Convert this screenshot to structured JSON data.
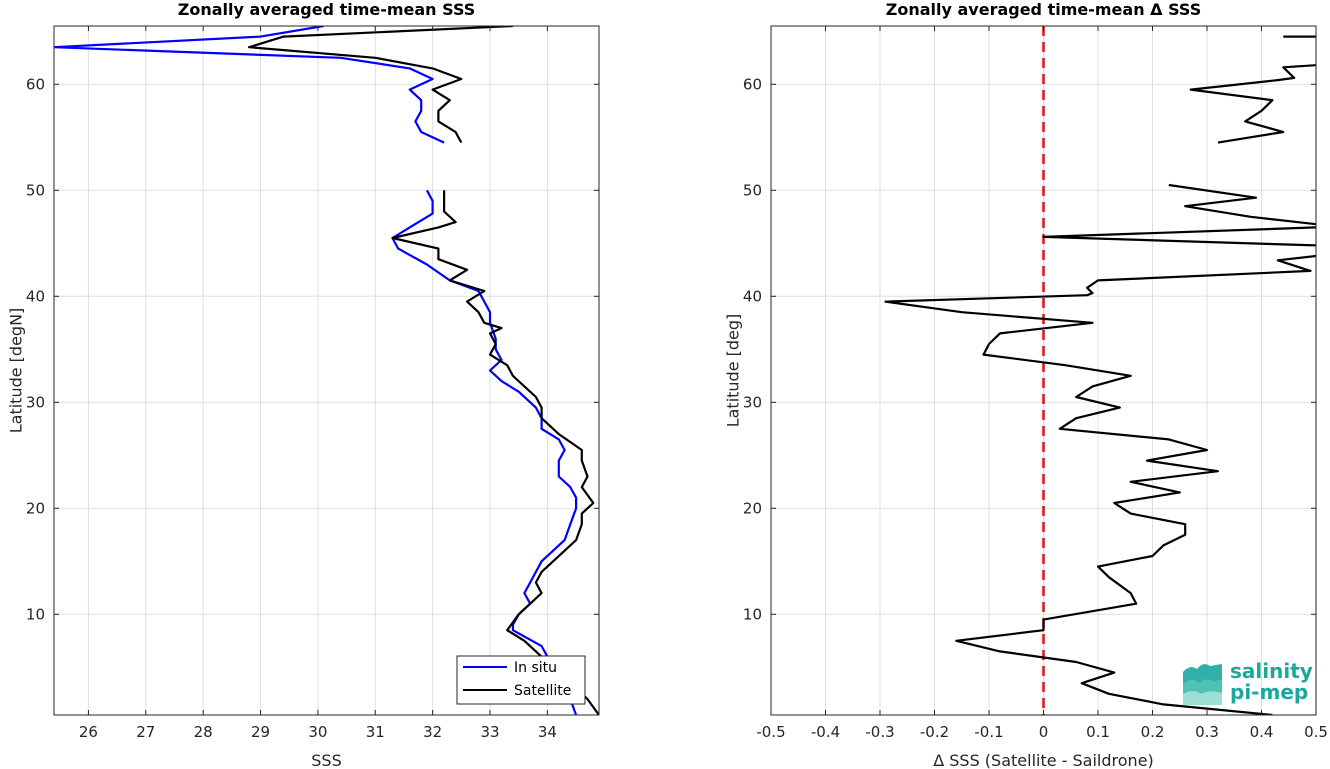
{
  "chart_data": [
    {
      "type": "line",
      "title": "Zonally averaged time-mean SSS",
      "xlabel": "SSS",
      "ylabel": "Latitude [degN]",
      "xlim": [
        25.4,
        34.9
      ],
      "ylim": [
        0.5,
        65.5
      ],
      "xticks": [
        26,
        27,
        28,
        29,
        30,
        31,
        32,
        33,
        34
      ],
      "yticks": [
        10,
        20,
        30,
        40,
        50,
        60
      ],
      "grid": true,
      "legend_position": "bottom-right",
      "series": [
        {
          "name": "In situ",
          "color": "#0000ff",
          "segments": [
            [
              [
                30.1,
                65.5
              ],
              [
                29.0,
                64.5
              ],
              [
                25.4,
                63.5
              ],
              [
                30.4,
                62.5
              ],
              [
                31.6,
                61.5
              ],
              [
                32.0,
                60.5
              ],
              [
                31.6,
                59.5
              ],
              [
                31.8,
                58.5
              ],
              [
                31.8,
                57.5
              ],
              [
                31.7,
                56.5
              ],
              [
                31.8,
                55.5
              ],
              [
                32.2,
                54.5
              ]
            ],
            [
              [
                31.9,
                50.0
              ],
              [
                32.0,
                49.0
              ],
              [
                32.0,
                47.8
              ],
              [
                31.6,
                46.5
              ],
              [
                31.3,
                45.5
              ],
              [
                31.4,
                44.5
              ],
              [
                31.9,
                43.0
              ],
              [
                32.3,
                41.5
              ],
              [
                32.8,
                40.5
              ],
              [
                32.9,
                39.5
              ],
              [
                33.0,
                38.5
              ],
              [
                33.0,
                37.5
              ],
              [
                33.1,
                36.0
              ],
              [
                33.1,
                35.0
              ],
              [
                33.2,
                34.0
              ],
              [
                33.0,
                33.0
              ],
              [
                33.2,
                32.0
              ],
              [
                33.5,
                31.0
              ],
              [
                33.8,
                29.5
              ],
              [
                33.9,
                28.5
              ],
              [
                33.9,
                27.5
              ],
              [
                34.2,
                26.5
              ],
              [
                34.3,
                25.5
              ],
              [
                34.2,
                24.5
              ],
              [
                34.2,
                23.0
              ],
              [
                34.4,
                22.0
              ],
              [
                34.5,
                21.0
              ],
              [
                34.5,
                20.0
              ],
              [
                34.4,
                18.5
              ],
              [
                34.3,
                17.0
              ],
              [
                34.1,
                16.0
              ],
              [
                33.9,
                15.0
              ],
              [
                33.8,
                14.0
              ],
              [
                33.7,
                13.0
              ],
              [
                33.6,
                12.0
              ],
              [
                33.7,
                11.0
              ],
              [
                33.5,
                10.0
              ],
              [
                33.4,
                9.0
              ],
              [
                33.4,
                8.5
              ],
              [
                33.9,
                7.0
              ],
              [
                34.0,
                6.0
              ],
              [
                34.1,
                5.0
              ],
              [
                34.2,
                4.0
              ],
              [
                34.3,
                3.0
              ],
              [
                34.4,
                2.0
              ],
              [
                34.5,
                0.5
              ]
            ]
          ]
        },
        {
          "name": "Satellite",
          "color": "#000000",
          "segments": [
            [
              [
                33.4,
                65.5
              ],
              [
                29.4,
                64.5
              ],
              [
                28.8,
                63.5
              ],
              [
                31.0,
                62.5
              ],
              [
                32.0,
                61.5
              ],
              [
                32.5,
                60.5
              ],
              [
                32.0,
                59.5
              ],
              [
                32.3,
                58.5
              ],
              [
                32.1,
                57.5
              ],
              [
                32.1,
                56.5
              ],
              [
                32.4,
                55.5
              ],
              [
                32.5,
                54.5
              ]
            ],
            [
              [
                32.2,
                50.0
              ],
              [
                32.2,
                49.0
              ],
              [
                32.2,
                48.0
              ],
              [
                32.4,
                47.0
              ],
              [
                32.1,
                46.5
              ],
              [
                31.3,
                45.5
              ],
              [
                32.1,
                44.5
              ],
              [
                32.1,
                43.5
              ],
              [
                32.6,
                42.5
              ],
              [
                32.3,
                41.5
              ],
              [
                32.9,
                40.5
              ],
              [
                32.6,
                39.5
              ],
              [
                32.8,
                38.5
              ],
              [
                32.9,
                37.5
              ],
              [
                33.2,
                37.0
              ],
              [
                33.0,
                36.5
              ],
              [
                33.1,
                35.5
              ],
              [
                33.0,
                34.5
              ],
              [
                33.3,
                33.5
              ],
              [
                33.4,
                32.5
              ],
              [
                33.6,
                31.5
              ],
              [
                33.8,
                30.5
              ],
              [
                33.9,
                29.5
              ],
              [
                33.9,
                28.5
              ],
              [
                34.2,
                27.0
              ],
              [
                34.6,
                25.5
              ],
              [
                34.6,
                24.5
              ],
              [
                34.7,
                23.0
              ],
              [
                34.6,
                22.0
              ],
              [
                34.8,
                20.5
              ],
              [
                34.6,
                19.5
              ],
              [
                34.6,
                18.5
              ],
              [
                34.5,
                17.0
              ],
              [
                34.3,
                16.0
              ],
              [
                34.1,
                15.0
              ],
              [
                33.9,
                14.0
              ],
              [
                33.8,
                13.0
              ],
              [
                33.9,
                12.0
              ],
              [
                33.7,
                11.0
              ],
              [
                33.5,
                10.0
              ],
              [
                33.3,
                8.5
              ],
              [
                33.6,
                7.5
              ],
              [
                33.9,
                6.0
              ],
              [
                34.1,
                5.0
              ],
              [
                34.3,
                4.0
              ],
              [
                34.5,
                3.0
              ],
              [
                34.7,
                2.0
              ],
              [
                34.9,
                0.5
              ]
            ]
          ]
        }
      ]
    },
    {
      "type": "line",
      "title": "Zonally averaged time-mean Δ SSS",
      "xlabel": "Δ SSS (Satellite - Saildrone)",
      "ylabel": "Latitude [deg]",
      "xlim": [
        -0.5,
        0.5
      ],
      "ylim": [
        0.5,
        65.5
      ],
      "xticks": [
        -0.5,
        -0.4,
        -0.3,
        -0.2,
        -0.1,
        0,
        0.1,
        0.2,
        0.3,
        0.4,
        0.5
      ],
      "yticks": [
        10,
        20,
        30,
        40,
        50,
        60
      ],
      "grid": true,
      "reference_line": {
        "x": 0,
        "color": "#dd1111",
        "style": "dashed"
      },
      "series": [
        {
          "color": "#000000",
          "segments": [
            [
              [
                0.5,
                64.5
              ],
              [
                0.44,
                64.5
              ]
            ],
            [
              [
                0.5,
                61.8
              ],
              [
                0.44,
                61.6
              ],
              [
                0.46,
                60.6
              ],
              [
                0.43,
                60.4
              ],
              [
                0.27,
                59.5
              ],
              [
                0.42,
                58.5
              ],
              [
                0.4,
                57.5
              ],
              [
                0.37,
                56.5
              ],
              [
                0.44,
                55.5
              ],
              [
                0.32,
                54.5
              ]
            ],
            [
              [
                0.23,
                50.5
              ],
              [
                0.39,
                49.3
              ],
              [
                0.26,
                48.5
              ],
              [
                0.38,
                47.5
              ],
              [
                0.5,
                46.8
              ]
            ],
            [
              [
                0.5,
                46.5
              ],
              [
                0.0,
                45.6
              ],
              [
                0.5,
                44.8
              ]
            ],
            [
              [
                0.5,
                43.8
              ],
              [
                0.43,
                43.4
              ],
              [
                0.49,
                42.4
              ],
              [
                0.1,
                41.5
              ],
              [
                0.08,
                40.8
              ],
              [
                0.09,
                40.3
              ],
              [
                0.08,
                40.1
              ],
              [
                -0.29,
                39.5
              ],
              [
                -0.15,
                38.5
              ],
              [
                0.09,
                37.5
              ],
              [
                -0.08,
                36.5
              ],
              [
                -0.1,
                35.5
              ],
              [
                -0.11,
                34.5
              ],
              [
                0.04,
                33.5
              ],
              [
                0.16,
                32.5
              ],
              [
                0.09,
                31.5
              ],
              [
                0.06,
                30.5
              ],
              [
                0.14,
                29.5
              ],
              [
                0.06,
                28.5
              ],
              [
                0.03,
                27.5
              ],
              [
                0.23,
                26.5
              ],
              [
                0.3,
                25.5
              ],
              [
                0.19,
                24.5
              ],
              [
                0.32,
                23.5
              ],
              [
                0.16,
                22.5
              ],
              [
                0.25,
                21.5
              ],
              [
                0.13,
                20.5
              ],
              [
                0.16,
                19.5
              ],
              [
                0.26,
                18.5
              ],
              [
                0.26,
                17.5
              ],
              [
                0.22,
                16.5
              ],
              [
                0.2,
                15.5
              ],
              [
                0.1,
                14.5
              ],
              [
                0.12,
                13.5
              ],
              [
                0.16,
                12.0
              ],
              [
                0.17,
                11.0
              ],
              [
                0.0,
                9.5
              ],
              [
                0.0,
                8.5
              ],
              [
                -0.16,
                7.5
              ],
              [
                -0.08,
                6.5
              ],
              [
                0.06,
                5.5
              ],
              [
                0.13,
                4.5
              ],
              [
                0.07,
                3.5
              ],
              [
                0.12,
                2.5
              ],
              [
                0.22,
                1.5
              ],
              [
                0.42,
                0.5
              ]
            ]
          ]
        }
      ]
    }
  ],
  "legend": {
    "items": [
      "In situ",
      "Satellite"
    ]
  },
  "logo": {
    "line1": "salinity",
    "line2": "pi-mep"
  }
}
